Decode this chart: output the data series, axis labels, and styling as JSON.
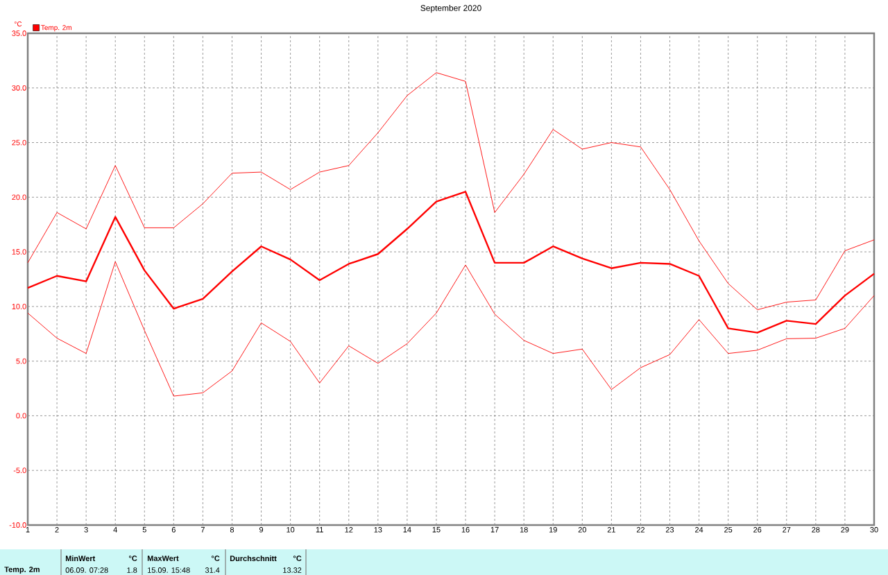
{
  "chart_data": {
    "type": "line",
    "title": "September 2020",
    "ylabel": "°C",
    "x": [
      1,
      2,
      3,
      4,
      5,
      6,
      7,
      8,
      9,
      10,
      11,
      12,
      13,
      14,
      15,
      16,
      17,
      18,
      19,
      20,
      21,
      22,
      23,
      24,
      25,
      26,
      27,
      28,
      29,
      30
    ],
    "series": [
      {
        "color": "#ff0000",
        "values": [
          14.0,
          18.6,
          17.1,
          22.9,
          17.2,
          17.2,
          19.4,
          22.2,
          22.3,
          20.7,
          22.3,
          22.9,
          25.9,
          29.3,
          31.4,
          30.6,
          18.6,
          22.1,
          26.2,
          24.4,
          25.0,
          24.6,
          20.7,
          16.0,
          12.1,
          9.7,
          10.4,
          10.6,
          15.1,
          16.1
        ]
      },
      {
        "name": "Temp. 2m",
        "color": "#ff0000",
        "values": [
          11.7,
          12.8,
          12.3,
          18.2,
          13.3,
          9.8,
          10.7,
          13.2,
          15.5,
          14.3,
          12.4,
          13.9,
          14.8,
          17.1,
          19.6,
          20.5,
          14.0,
          14.0,
          15.5,
          14.4,
          13.5,
          14.0,
          13.9,
          12.8,
          8.0,
          7.6,
          8.7,
          8.4,
          11.0,
          13.0
        ]
      },
      {
        "color": "#ff0000",
        "values": [
          9.4,
          7.1,
          5.7,
          14.1,
          7.8,
          1.8,
          2.1,
          4.1,
          8.5,
          6.8,
          3.0,
          6.4,
          4.8,
          6.6,
          9.4,
          13.8,
          9.3,
          6.9,
          5.7,
          6.1,
          2.4,
          4.4,
          5.6,
          8.8,
          5.7,
          6.0,
          7.05,
          7.1,
          8.0,
          11.0
        ]
      }
    ],
    "xlim": [
      1,
      30
    ],
    "xticks": [
      1,
      2,
      3,
      4,
      5,
      6,
      7,
      8,
      9,
      10,
      11,
      12,
      13,
      14,
      15,
      16,
      17,
      18,
      19,
      20,
      21,
      22,
      23,
      24,
      25,
      26,
      27,
      28,
      29,
      30
    ],
    "ylim": [
      -10,
      35
    ],
    "yticks": [
      {
        "value": -10,
        "label": "-10.0"
      },
      {
        "value": -5,
        "label": "-5.0"
      },
      {
        "value": 0,
        "label": "0.0"
      },
      {
        "value": 5,
        "label": "5.0"
      },
      {
        "value": 10,
        "label": "10.0"
      },
      {
        "value": 15,
        "label": "15.0"
      },
      {
        "value": 20,
        "label": "20.0"
      },
      {
        "value": 25,
        "label": "25.0"
      },
      {
        "value": 30,
        "label": "30.0"
      },
      {
        "value": 35,
        "label": "35.0"
      }
    ],
    "grid": true,
    "legend": "top left",
    "marker": "none",
    "line_style": "solid",
    "annotations": [
      "Temp. 2m",
      "MinWert",
      "°C",
      "06.09. 07:28",
      "1.8",
      "MaxWert",
      "°C",
      "15.09. 15:48",
      "31.4",
      "Durchschnitt",
      "°C",
      "13.32"
    ]
  }
}
